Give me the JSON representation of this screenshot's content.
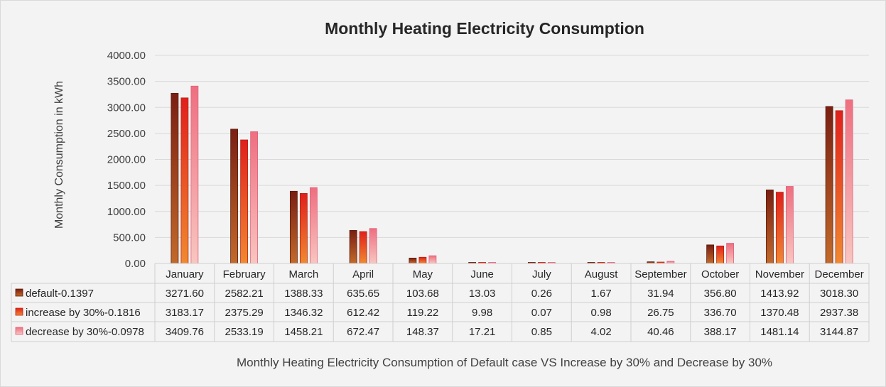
{
  "chart_data": {
    "type": "bar",
    "title": "Monthly Heating Electricity Consumption",
    "ylabel": "Monthly Consumption in kWh",
    "xlabel": "Monthly Heating Electricity Consumption of Default case VS Increase by 30% and Decrease by 30%",
    "ylim": [
      0,
      4000
    ],
    "yticks": [
      "0.00",
      "500.00",
      "1000.00",
      "1500.00",
      "2000.00",
      "2500.00",
      "3000.00",
      "3500.00",
      "4000.00"
    ],
    "grid": true,
    "categories": [
      "January",
      "February",
      "March",
      "April",
      "May",
      "June",
      "July",
      "August",
      "September",
      "October",
      "November",
      "December"
    ],
    "series": [
      {
        "name": "default-0.1397",
        "color": "#8b2d14",
        "values": [
          3271.6,
          2582.21,
          1388.33,
          635.65,
          103.68,
          13.03,
          0.26,
          1.67,
          31.94,
          356.8,
          1413.92,
          3018.3
        ],
        "labels": [
          "3271.60",
          "2582.21",
          "1388.33",
          "635.65",
          "103.68",
          "13.03",
          "0.26",
          "1.67",
          "31.94",
          "356.80",
          "1413.92",
          "3018.30"
        ]
      },
      {
        "name": "increase by 30%-0.1816",
        "color": "#e8501a",
        "values": [
          3183.17,
          2375.29,
          1346.32,
          612.42,
          119.22,
          9.98,
          0.07,
          0.98,
          26.75,
          336.7,
          1370.48,
          2937.38
        ],
        "labels": [
          "3183.17",
          "2375.29",
          "1346.32",
          "612.42",
          "119.22",
          "9.98",
          "0.07",
          "0.98",
          "26.75",
          "336.70",
          "1370.48",
          "2937.38"
        ]
      },
      {
        "name": "decrease by 30%-0.0978",
        "color": "#f08a93",
        "values": [
          3409.76,
          2533.19,
          1458.21,
          672.47,
          148.37,
          17.21,
          0.85,
          4.02,
          40.46,
          388.17,
          1481.14,
          3144.87
        ],
        "labels": [
          "3409.76",
          "2533.19",
          "1458.21",
          "672.47",
          "148.37",
          "17.21",
          "0.85",
          "4.02",
          "40.46",
          "388.17",
          "1481.14",
          "3144.87"
        ]
      }
    ]
  }
}
